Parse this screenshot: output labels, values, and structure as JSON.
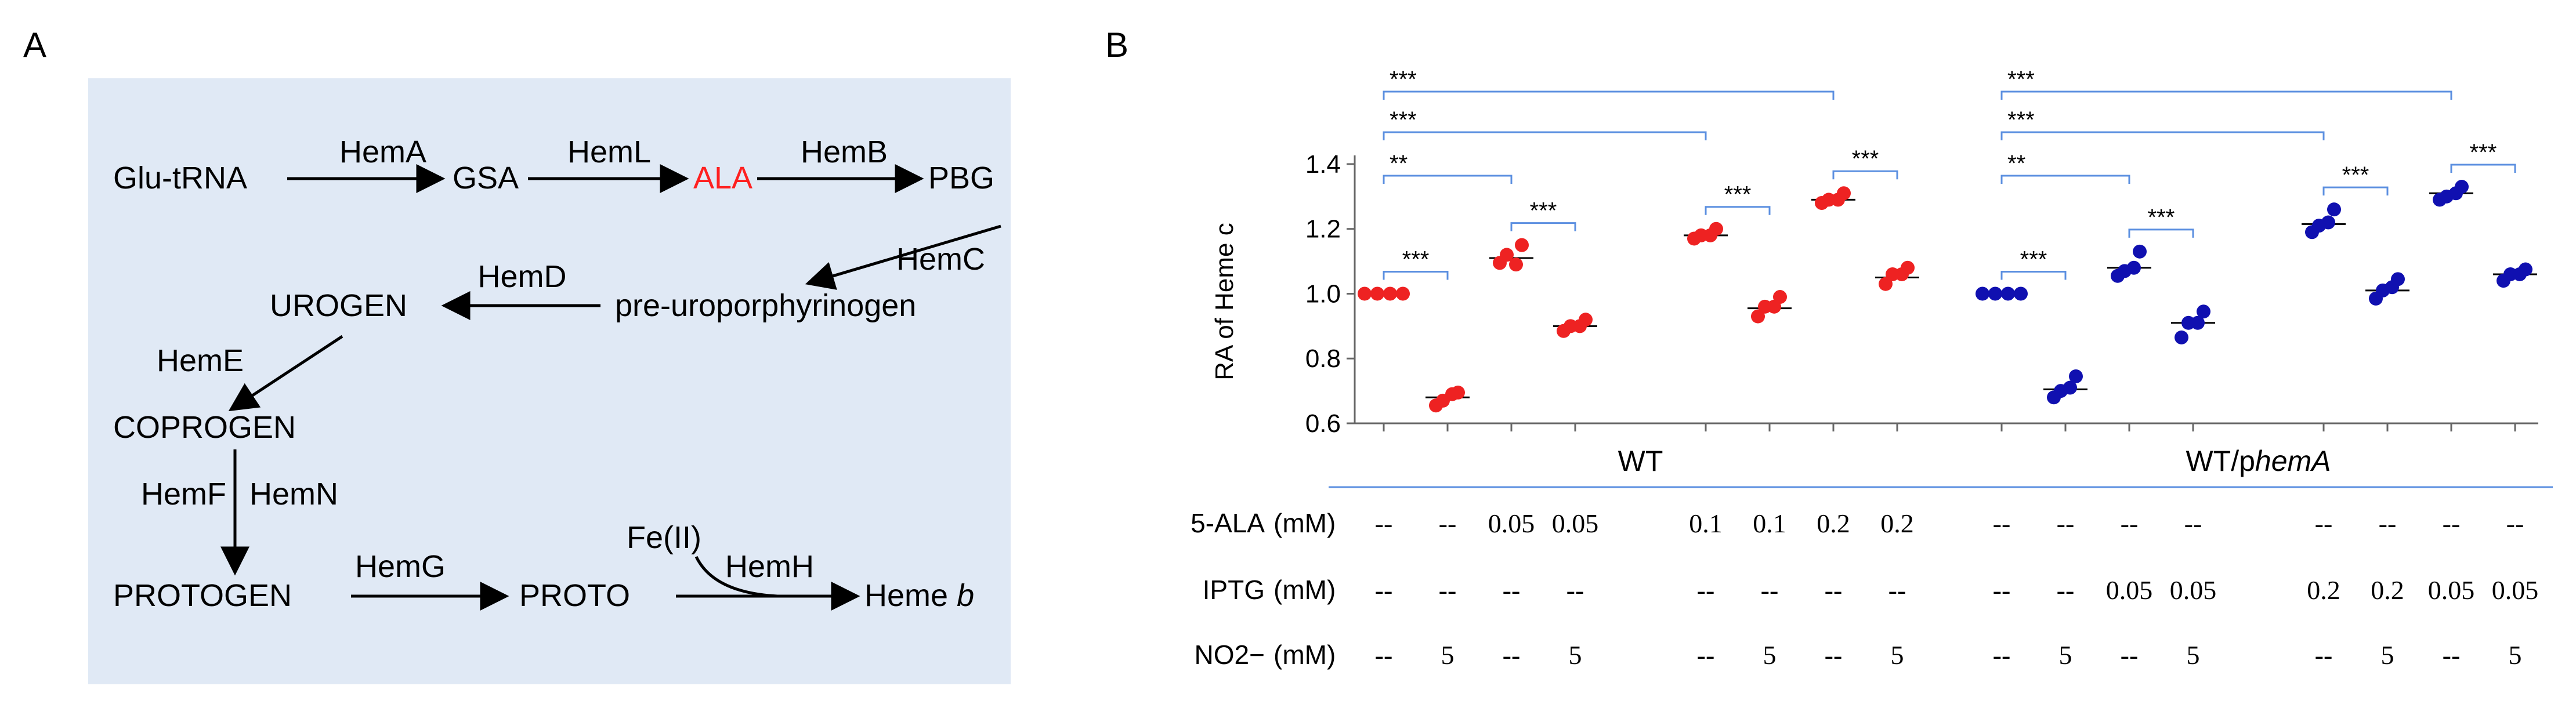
{
  "panel_a": {
    "label": "A",
    "pathway": {
      "glu_trna": "Glu-tRNA",
      "hemA": "HemA",
      "gsa": "GSA",
      "hemL": "HemL",
      "ala": "ALA",
      "hemB": "HemB",
      "pbg": "PBG",
      "hemC": "HemC",
      "pre_uro": "pre-uroporphyrinogen",
      "hemD": "HemD",
      "urogen": "UROGEN",
      "hemE": "HemE",
      "coprogen": "COPROGEN",
      "hemF": "HemF",
      "hemN": "HemN",
      "protogen": "PROTOGEN",
      "hemG": "HemG",
      "proto": "PROTO",
      "fe": "Fe(II)",
      "hemH": "HemH",
      "heme_b_prefix": "Heme",
      "heme_b_italic": "b"
    },
    "colors": {
      "background": "#e0e9f5",
      "highlight": "#ff2020"
    }
  },
  "panel_b": {
    "label": "B"
  },
  "chart_data": {
    "type": "scatter",
    "ylabel": "RA of Heme c",
    "ylim": [
      0.6,
      1.45
    ],
    "yticks": [
      "0.6",
      "0.8",
      "1.0",
      "1.2",
      "1.4"
    ],
    "groups": [
      {
        "name": "WT",
        "italic_suffix": "",
        "color": "#ee2222",
        "columns": [
          1,
          2,
          3,
          4,
          5,
          6,
          7,
          8
        ]
      },
      {
        "name": "WT/p",
        "italic_suffix": "hemA",
        "color": "#1010b0",
        "columns": [
          9,
          10,
          11,
          12,
          13,
          14,
          15,
          16
        ]
      }
    ],
    "series": [
      {
        "col": 1,
        "group": "WT",
        "mean": 1.0,
        "points": [
          1.0,
          1.0,
          1.0,
          1.0
        ]
      },
      {
        "col": 2,
        "group": "WT",
        "mean": 0.68,
        "points": [
          0.655,
          0.695,
          0.67,
          0.69
        ]
      },
      {
        "col": 3,
        "group": "WT",
        "mean": 1.11,
        "points": [
          1.095,
          1.15,
          1.12,
          1.09
        ]
      },
      {
        "col": 4,
        "group": "WT",
        "mean": 0.9,
        "points": [
          0.885,
          0.92,
          0.9,
          0.9
        ]
      },
      {
        "col": 5,
        "group": "WT",
        "mean": 1.18,
        "points": [
          1.17,
          1.2,
          1.18,
          1.18
        ]
      },
      {
        "col": 6,
        "group": "WT",
        "mean": 0.955,
        "points": [
          0.93,
          0.99,
          0.96,
          0.96
        ]
      },
      {
        "col": 7,
        "group": "WT",
        "mean": 1.29,
        "points": [
          1.28,
          1.31,
          1.29,
          1.29
        ]
      },
      {
        "col": 8,
        "group": "WT",
        "mean": 1.05,
        "points": [
          1.03,
          1.08,
          1.06,
          1.06
        ]
      },
      {
        "col": 9,
        "group": "WT/phemA",
        "mean": 1.0,
        "points": [
          1.0,
          1.0,
          1.0,
          1.0
        ]
      },
      {
        "col": 10,
        "group": "WT/phemA",
        "mean": 0.705,
        "points": [
          0.68,
          0.745,
          0.7,
          0.71
        ]
      },
      {
        "col": 11,
        "group": "WT/phemA",
        "mean": 1.08,
        "points": [
          1.055,
          1.13,
          1.07,
          1.08
        ]
      },
      {
        "col": 12,
        "group": "WT/phemA",
        "mean": 0.91,
        "points": [
          0.865,
          0.945,
          0.91,
          0.91
        ]
      },
      {
        "col": 13,
        "group": "WT/phemA",
        "mean": 1.215,
        "points": [
          1.19,
          1.26,
          1.21,
          1.22
        ]
      },
      {
        "col": 14,
        "group": "WT/phemA",
        "mean": 1.01,
        "points": [
          0.985,
          1.045,
          1.01,
          1.02
        ]
      },
      {
        "col": 15,
        "group": "WT/phemA",
        "mean": 1.31,
        "points": [
          1.29,
          1.33,
          1.3,
          1.31
        ]
      },
      {
        "col": 16,
        "group": "WT/phemA",
        "mean": 1.06,
        "points": [
          1.04,
          1.075,
          1.06,
          1.06
        ]
      }
    ],
    "significance": [
      {
        "from": 1,
        "to": 2,
        "label": "***",
        "tier": 0
      },
      {
        "from": 3,
        "to": 4,
        "label": "***",
        "tier": 0
      },
      {
        "from": 5,
        "to": 6,
        "label": "***",
        "tier": 0
      },
      {
        "from": 7,
        "to": 8,
        "label": "***",
        "tier": 0
      },
      {
        "from": 1,
        "to": 3,
        "label": "**",
        "tier": 1
      },
      {
        "from": 1,
        "to": 5,
        "label": "***",
        "tier": 2
      },
      {
        "from": 1,
        "to": 7,
        "label": "***",
        "tier": 3
      },
      {
        "from": 9,
        "to": 10,
        "label": "***",
        "tier": 0
      },
      {
        "from": 11,
        "to": 12,
        "label": "***",
        "tier": 0
      },
      {
        "from": 13,
        "to": 14,
        "label": "***",
        "tier": 0
      },
      {
        "from": 15,
        "to": 16,
        "label": "***",
        "tier": 0
      },
      {
        "from": 9,
        "to": 11,
        "label": "**",
        "tier": 1
      },
      {
        "from": 9,
        "to": 13,
        "label": "***",
        "tier": 2
      },
      {
        "from": 9,
        "to": 15,
        "label": "***",
        "tier": 3
      }
    ],
    "table": {
      "unit": "(mM)",
      "rows": [
        {
          "name": "5-ALA",
          "values": [
            "--",
            "--",
            "0.05",
            "0.05",
            "0.1",
            "0.1",
            "0.2",
            "0.2",
            "--",
            "--",
            "--",
            "--",
            "--",
            "--",
            "--",
            "--"
          ]
        },
        {
          "name": "IPTG",
          "values": [
            "--",
            "--",
            "--",
            "--",
            "--",
            "--",
            "--",
            "--",
            "--",
            "--",
            "0.05",
            "0.05",
            "0.2",
            "0.2",
            "0.05",
            "0.05"
          ]
        },
        {
          "name": "NO2−",
          "values": [
            "--",
            "5",
            "--",
            "5",
            "--",
            "5",
            "--",
            "5",
            "--",
            "5",
            "--",
            "5",
            "--",
            "5",
            "--",
            "5"
          ]
        }
      ]
    },
    "colors": {
      "bracket": "#5b8fe0",
      "axis": "#666666"
    }
  }
}
